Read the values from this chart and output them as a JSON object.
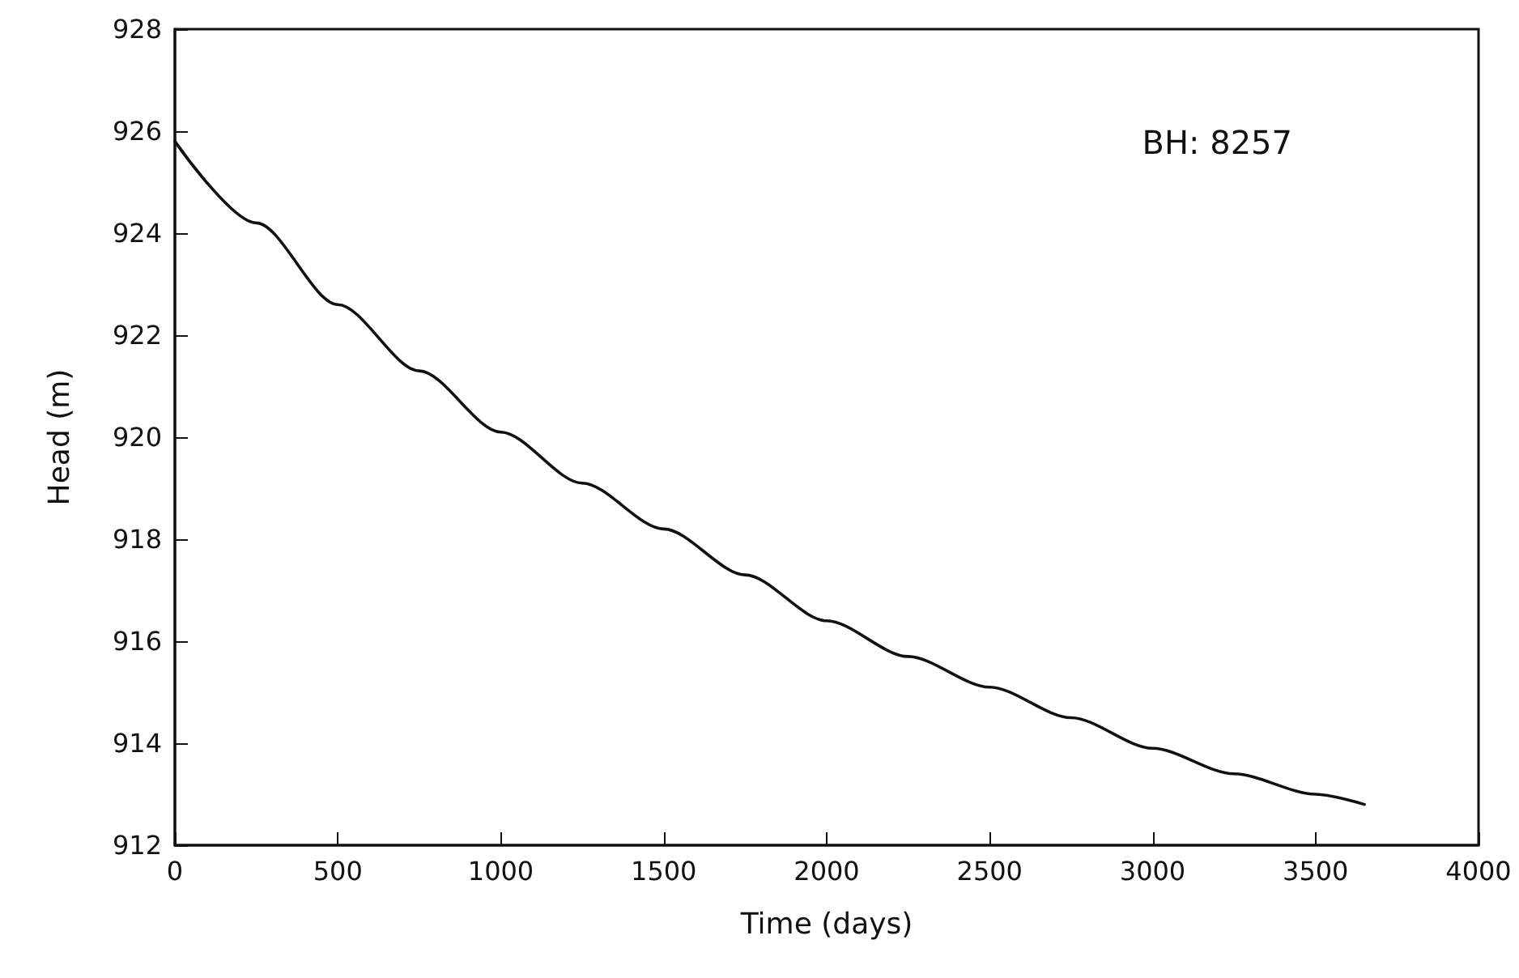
{
  "chart_data": {
    "type": "line",
    "xlabel": "Time (days)",
    "ylabel": "Head (m)",
    "annotations": [
      "BH: 8257"
    ],
    "x": [
      0,
      250,
      500,
      750,
      1000,
      1250,
      1500,
      1750,
      2000,
      2250,
      2500,
      2750,
      3000,
      3250,
      3500,
      3650
    ],
    "series": [
      {
        "color": "#111111",
        "values": [
          925.8,
          924.2,
          922.6,
          921.3,
          920.1,
          919.1,
          918.2,
          917.3,
          916.4,
          915.7,
          915.1,
          914.5,
          913.9,
          913.4,
          913.0,
          912.8
        ]
      }
    ],
    "xlim": [
      0,
      4000
    ],
    "xticks": [
      0,
      500,
      1000,
      1500,
      2000,
      2500,
      3000,
      3500,
      4000
    ],
    "ylim": [
      912,
      928
    ],
    "yticks": [
      912,
      914,
      916,
      918,
      920,
      922,
      924,
      926,
      928
    ],
    "grid": false,
    "marker": "none",
    "line_style": "solid"
  }
}
